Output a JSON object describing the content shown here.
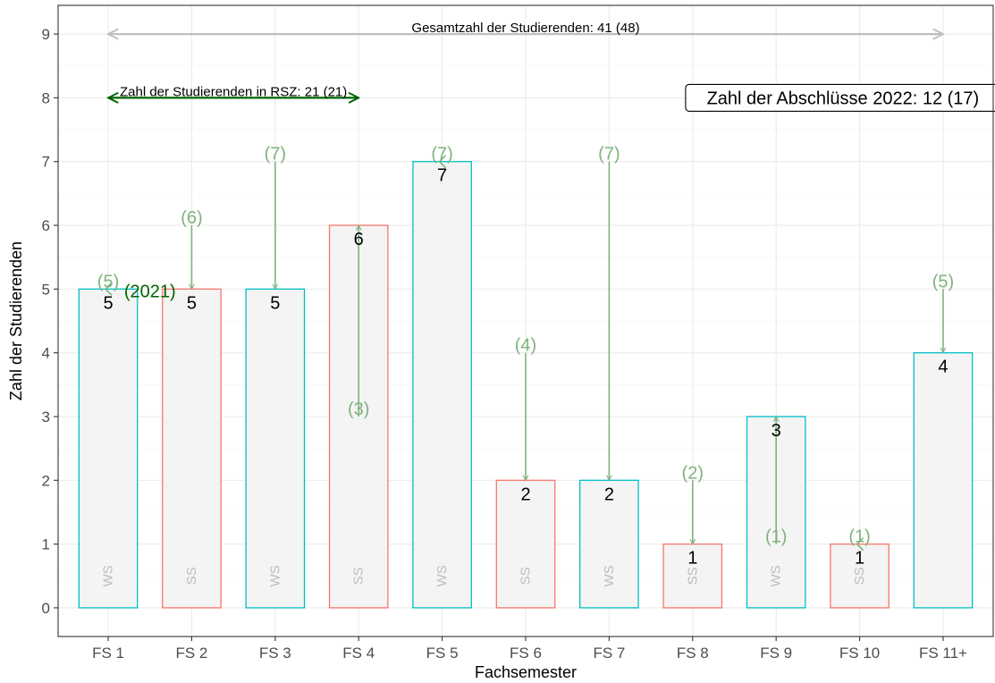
{
  "chart_data": {
    "type": "bar",
    "xlabel": "Fachsemester",
    "ylabel": "Zahl der Studierenden",
    "ylim": [
      -0.45,
      9.45
    ],
    "yticks": [
      0,
      1,
      2,
      3,
      4,
      5,
      6,
      7,
      8,
      9
    ],
    "grid": true,
    "categories": [
      "FS 1",
      "FS 2",
      "FS 3",
      "FS 4",
      "FS 5",
      "FS 6",
      "FS 7",
      "FS 8",
      "FS 9",
      "FS 10",
      "FS 11+"
    ],
    "values": [
      5,
      5,
      5,
      6,
      7,
      2,
      2,
      1,
      3,
      1,
      4
    ],
    "value_labels": [
      "5",
      "5",
      "5",
      "6",
      "7",
      "2",
      "2",
      "1",
      "3",
      "1",
      "4"
    ],
    "previous_values": [
      5,
      6,
      7,
      3,
      7,
      4,
      7,
      2,
      1,
      1,
      5
    ],
    "previous_labels": [
      "(5)",
      "(6)",
      "(7)",
      "(3)",
      "(7)",
      "(4)",
      "(7)",
      "(2)",
      "(1)",
      "(1)",
      "(5)"
    ],
    "terms": [
      "WS",
      "SS",
      "WS",
      "SS",
      "WS",
      "SS",
      "WS",
      "SS",
      "WS",
      "SS",
      ""
    ],
    "term_colors": {
      "WS": "#00BFC4",
      "SS": "#F8766D",
      "": "#00BFC4"
    },
    "bar_fill": "#f4f4f4",
    "previous_color": "#7fb27f",
    "previous_year_label": "(2021)",
    "annotations": {
      "total": {
        "text": "Gesamtzahl der Studierenden: 41 (48)",
        "from": 1,
        "to": 11,
        "y": 9,
        "color": "#bfbfbf"
      },
      "rsz": {
        "text": "Zahl der Studierenden in RSZ: 21 (21)",
        "from": 1,
        "to": 4,
        "y": 8,
        "color": "#006400"
      },
      "graduates": {
        "text": "Zahl der Abschlüsse 2022: 12 (17)",
        "x": 9.8,
        "y": 8
      }
    }
  }
}
